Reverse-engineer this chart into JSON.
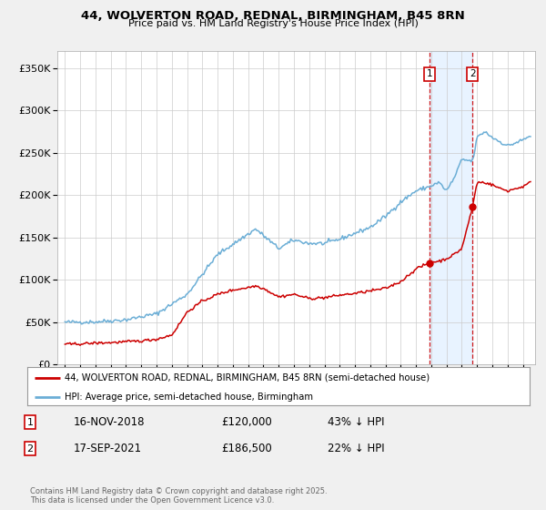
{
  "title": "44, WOLVERTON ROAD, REDNAL, BIRMINGHAM, B45 8RN",
  "subtitle": "Price paid vs. HM Land Registry's House Price Index (HPI)",
  "legend_line1": "44, WOLVERTON ROAD, REDNAL, BIRMINGHAM, B45 8RN (semi-detached house)",
  "legend_line2": "HPI: Average price, semi-detached house, Birmingham",
  "footnote": "Contains HM Land Registry data © Crown copyright and database right 2025.\nThis data is licensed under the Open Government Licence v3.0.",
  "hpi_color": "#6baed6",
  "price_color": "#cc0000",
  "sale1_date_label": "16-NOV-2018",
  "sale1_price": 120000,
  "sale1_price_label": "£120,000",
  "sale1_hpi_pct": "43% ↓ HPI",
  "sale1_year": 2018.88,
  "sale2_date_label": "17-SEP-2021",
  "sale2_price": 186500,
  "sale2_price_label": "£186,500",
  "sale2_hpi_pct": "22% ↓ HPI",
  "sale2_year": 2021.71,
  "ylim": [
    0,
    370000
  ],
  "yticks": [
    0,
    50000,
    100000,
    150000,
    200000,
    250000,
    300000,
    350000
  ],
  "background_color": "#f0f0f0",
  "plot_bg_color": "#ffffff",
  "shade_color": "#ddeeff",
  "grid_color": "#cccccc"
}
